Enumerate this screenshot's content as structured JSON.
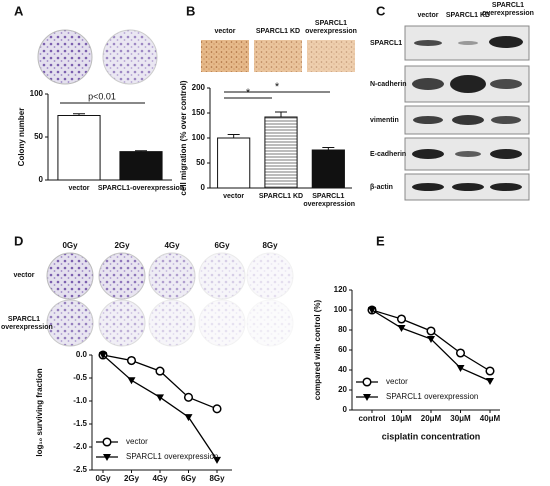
{
  "figure": {
    "panel_labels": [
      "A",
      "B",
      "C",
      "D",
      "E"
    ],
    "B_images": [
      "vector",
      "SPARCL1 KD",
      "SPARCL1 overexpression"
    ],
    "C_blot": {
      "columns": [
        "vector",
        "SPARCL1 KD",
        "SPARCL1 overexpression"
      ],
      "rows": [
        "SPARCL1",
        "N-cadherin",
        "vimentin",
        "E-cadherin",
        "β-actin"
      ]
    },
    "D_plates": {
      "columns": [
        "0Gy",
        "2Gy",
        "4Gy",
        "6Gy",
        "8Gy"
      ],
      "rows": [
        "vector",
        "SPARCL1 overexpression"
      ]
    }
  },
  "chart_data": [
    {
      "type": "bar",
      "ylabel": "Colony number",
      "categories": [
        "vector",
        "SPARCL1-overexpression"
      ],
      "values": [
        75,
        33
      ],
      "errors": [
        2,
        1
      ],
      "colors": [
        "#ffffff",
        "#111111"
      ],
      "hatch": [
        false,
        false
      ],
      "ylim": [
        0,
        100
      ],
      "yticks": [
        0,
        50,
        100
      ],
      "annotations": [
        "p<0.01"
      ]
    },
    {
      "type": "bar",
      "ylabel": "cell migration (% over control)",
      "categories": [
        "vector",
        "SPARCL1 KD",
        "SPARCL1 overexpression"
      ],
      "values": [
        100,
        142,
        76
      ],
      "errors": [
        7,
        10,
        5
      ],
      "colors": [
        "#ffffff",
        "#ffffff",
        "#111111"
      ],
      "hatch": [
        false,
        true,
        false
      ],
      "ylim": [
        0,
        200
      ],
      "yticks": [
        0,
        50,
        100,
        150,
        200
      ],
      "annotations": [
        "*",
        "*"
      ]
    },
    {
      "type": "line",
      "ylabel": "log₁₀ surviving fraction",
      "categories": [
        "0Gy",
        "2Gy",
        "4Gy",
        "6Gy",
        "8Gy"
      ],
      "series": [
        {
          "name": "vector",
          "color": "#000000",
          "marker": "circle",
          "values": [
            0,
            -0.12,
            -0.35,
            -0.92,
            -1.17
          ]
        },
        {
          "name": "SPARCL1 overexpression",
          "color": "#000000",
          "marker": "triangle-down",
          "values": [
            0,
            -0.55,
            -0.92,
            -1.35,
            -2.28
          ]
        }
      ],
      "ylim": [
        -2.5,
        0
      ],
      "yticks": [
        {
          "value": 0,
          "label": "0.0"
        },
        {
          "value": -0.5,
          "label": "-0.5"
        },
        {
          "value": -1,
          "label": "-1.0"
        },
        {
          "value": -1.5,
          "label": "-1.5"
        },
        {
          "value": -2,
          "label": "-2.0"
        },
        {
          "value": -2.5,
          "label": "-2.5"
        }
      ],
      "legend": "lower left"
    },
    {
      "type": "line",
      "ylabel": "compared with control (%)",
      "xlabel": "cisplatin concentration",
      "categories": [
        "control",
        "10μM",
        "20μM",
        "30μM",
        "40μM"
      ],
      "series": [
        {
          "name": "vector",
          "color": "#000000",
          "marker": "circle",
          "values": [
            100,
            91,
            79,
            57,
            39
          ]
        },
        {
          "name": "SPARCL1 overexpression",
          "color": "#000000",
          "marker": "triangle-down",
          "values": [
            100,
            82,
            71,
            42,
            29
          ]
        }
      ],
      "ylim": [
        0,
        120
      ],
      "yticks": [
        0,
        20,
        40,
        60,
        80,
        100,
        120
      ],
      "legend": "lower left"
    }
  ]
}
